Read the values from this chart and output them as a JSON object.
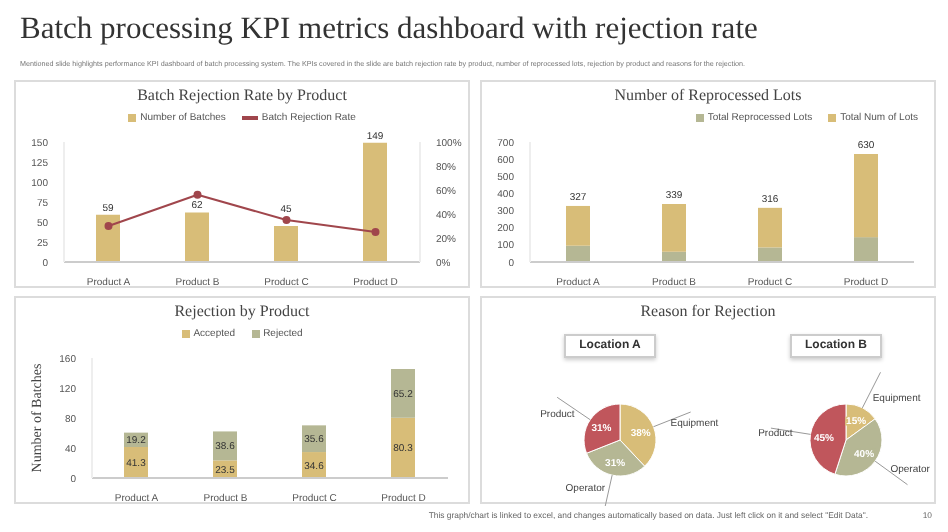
{
  "chart_data": [
    {
      "type": "other",
      "title": "Batch processing KPI metrics dashboard with rejection rate",
      "subtitle": "Mentioned slide highlights performance KPI dashboard of batch processing system. The KPIs covered in the slide are batch rejection rate by product, number of reprocessed lots, rejection by product and reasons for the rejection.",
      "annotations": [
        "This graph/chart is linked to excel, and changes automatically based on data. Just left click on it and select \"Edit Data\".",
        "10"
      ]
    },
    {
      "type": "bar",
      "title": "Batch Rejection Rate by Product",
      "categories": [
        "Product A",
        "Product B",
        "Product C",
        "Product D"
      ],
      "series": [
        {
          "name": "Number of Batches",
          "color": "#d8bd78",
          "values": [
            59,
            62,
            45,
            149
          ],
          "value_labels": [
            "59",
            "62",
            "45",
            "149"
          ]
        },
        {
          "name": "Batch Rejection Rate",
          "type": "line",
          "axis": "y2",
          "color": "#a0464c",
          "values": [
            30,
            56,
            35,
            25
          ]
        }
      ],
      "ylim": [
        0,
        150
      ],
      "yticks": [
        0,
        25,
        50,
        75,
        100,
        125,
        150
      ],
      "y2lim": [
        0,
        100
      ],
      "y2ticks": [
        {
          "value": 0,
          "label": "0%"
        },
        {
          "value": 20,
          "label": "20%"
        },
        {
          "value": 40,
          "label": "40%"
        },
        {
          "value": 60,
          "label": "60%"
        },
        {
          "value": 80,
          "label": "80%"
        },
        {
          "value": 100,
          "label": "100%"
        }
      ],
      "marker": "circle",
      "legend": "top"
    },
    {
      "type": "bar",
      "title": "Number of Reprocessed Lots",
      "stacked": true,
      "categories": [
        "Product A",
        "Product B",
        "Product C",
        "Product D"
      ],
      "series": [
        {
          "name": "Total Reprocessed Lots",
          "color": "#b5b794",
          "values": [
            95,
            60,
            85,
            145
          ]
        },
        {
          "name": "Total Num of Lots",
          "color": "#d8bd78",
          "values": [
            232,
            279,
            231,
            485
          ]
        }
      ],
      "totals": [
        "327",
        "339",
        "316",
        "630"
      ],
      "ylim": [
        0,
        700
      ],
      "yticks": [
        0,
        100,
        200,
        300,
        400,
        500,
        600,
        700
      ],
      "legend": "top right"
    },
    {
      "type": "bar",
      "title": "Rejection by Product",
      "ylabel": "Number of Batches",
      "stacked": true,
      "data_labels": true,
      "categories": [
        "Product A",
        "Product B",
        "Product C",
        "Product D"
      ],
      "series": [
        {
          "name": "Accepted",
          "color": "#d8bd78",
          "values": [
            41.3,
            23.5,
            34.6,
            80.3
          ]
        },
        {
          "name": "Rejected",
          "color": "#b5b794",
          "values": [
            19.2,
            38.6,
            35.6,
            65.2
          ]
        }
      ],
      "ylim": [
        0,
        160
      ],
      "yticks": [
        0,
        40,
        80,
        120,
        160
      ],
      "legend": "top"
    },
    {
      "type": "pie",
      "title": "Reason for Rejection",
      "subtitle": "Location A",
      "categories": [
        "Equipment",
        "Operator",
        "Product"
      ],
      "values": [
        38,
        31,
        31
      ],
      "value_labels": [
        "38%",
        "31%",
        "31%"
      ],
      "colors": [
        "#d8bd78",
        "#b5b794",
        "#c0565c"
      ]
    },
    {
      "type": "pie",
      "subtitle": "Location B",
      "categories": [
        "Equipment",
        "Operator",
        "Product"
      ],
      "values": [
        15,
        40,
        45
      ],
      "value_labels": [
        "15%",
        "40%",
        "45%"
      ],
      "colors": [
        "#d8bd78",
        "#b5b794",
        "#c0565c"
      ]
    }
  ]
}
